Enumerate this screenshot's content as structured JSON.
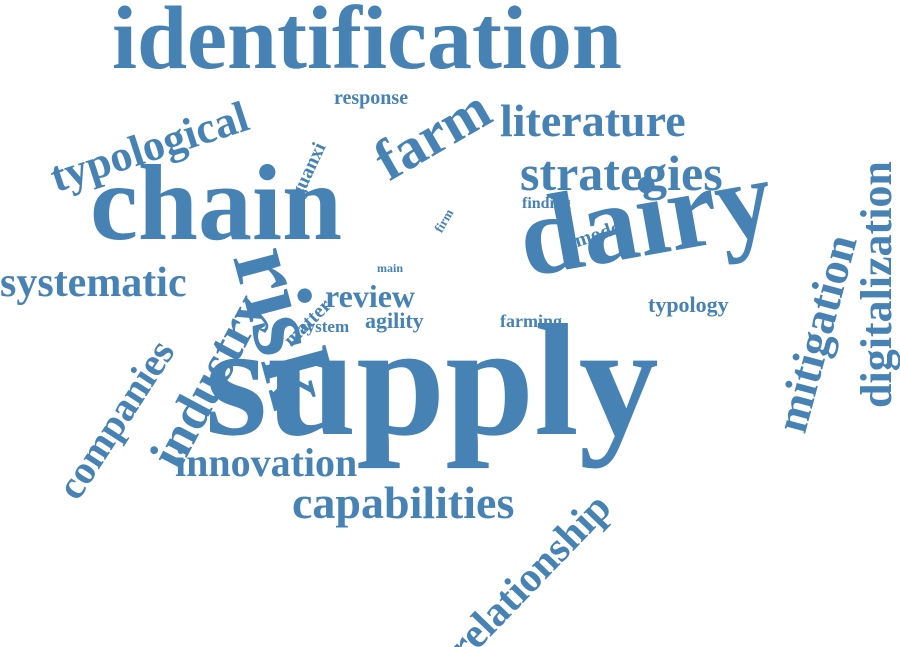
{
  "cloud": {
    "color": "#4682b4",
    "words": {
      "identification": "identification",
      "supply": "supply",
      "chain": "chain",
      "risk": "risk",
      "dairy": "dairy",
      "farm": "farm",
      "literature": "literature",
      "strategies": "strategies",
      "typological": "typological",
      "response": "response",
      "guanxi": "guanxi",
      "finding": "finding",
      "firm": "firm",
      "model": "model",
      "main": "main",
      "systematic": "systematic",
      "industry": "industry",
      "companies": "companies",
      "matter": "matter",
      "review": "review",
      "agility": "agility",
      "system": "system",
      "farming": "farming",
      "typology": "typology",
      "mitigation": "mitigation",
      "digitalization": "digitalization",
      "innovation": "innovation",
      "capabilities": "capabilities",
      "relationship": "relationship"
    }
  }
}
